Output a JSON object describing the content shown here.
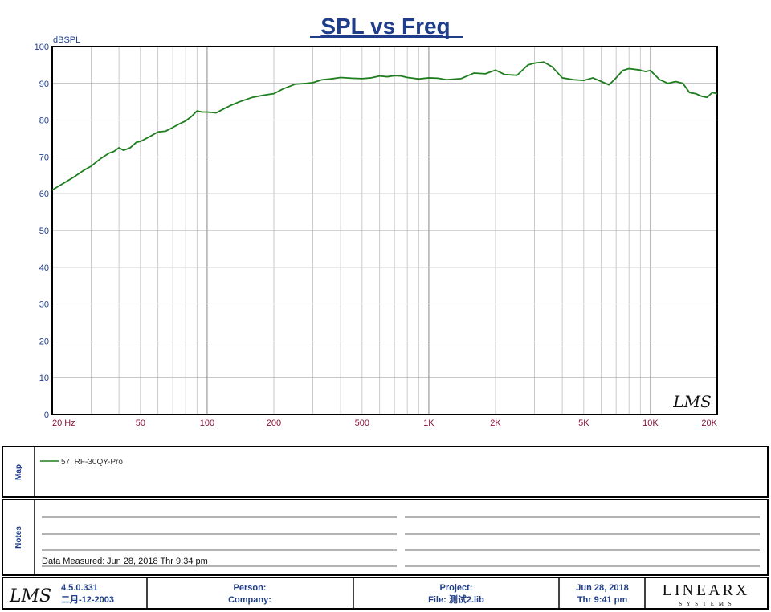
{
  "chart_data": {
    "type": "line",
    "title": "SPL vs Freq",
    "ylabel": "dBSPL",
    "xlabel": "",
    "xscale": "log",
    "xlim": [
      20,
      20000
    ],
    "ylim": [
      0,
      100
    ],
    "yticks": [
      0,
      10,
      20,
      30,
      40,
      50,
      60,
      70,
      80,
      90,
      100
    ],
    "xticks": [
      {
        "value": 20,
        "label": "20  Hz"
      },
      {
        "value": 50,
        "label": "50"
      },
      {
        "value": 100,
        "label": "100"
      },
      {
        "value": 200,
        "label": "200"
      },
      {
        "value": 500,
        "label": "500"
      },
      {
        "value": 1000,
        "label": "1K"
      },
      {
        "value": 2000,
        "label": "2K"
      },
      {
        "value": 5000,
        "label": "5K"
      },
      {
        "value": 10000,
        "label": "10K"
      },
      {
        "value": 20000,
        "label": "20K"
      }
    ],
    "series": [
      {
        "name": "57: RF-30QY-Pro",
        "color": "#1e7d1e",
        "x": [
          20,
          22,
          25,
          28,
          30,
          33,
          36,
          38,
          40,
          42,
          45,
          48,
          50,
          55,
          60,
          65,
          70,
          75,
          80,
          85,
          90,
          95,
          100,
          110,
          120,
          130,
          140,
          160,
          180,
          200,
          220,
          250,
          280,
          300,
          330,
          360,
          400,
          450,
          500,
          550,
          600,
          650,
          700,
          750,
          800,
          850,
          900,
          1000,
          1100,
          1200,
          1400,
          1600,
          1800,
          2000,
          2200,
          2500,
          2800,
          3000,
          3300,
          3600,
          4000,
          4500,
          5000,
          5500,
          6000,
          6500,
          7000,
          7500,
          8000,
          9000,
          9500,
          10000,
          11000,
          12000,
          13000,
          14000,
          15000,
          16000,
          17000,
          18000,
          19000,
          20000
        ],
        "y": [
          61,
          62.5,
          64.5,
          66.5,
          67.5,
          69.5,
          71,
          71.5,
          72.5,
          71.8,
          72.5,
          74,
          74.2,
          75.5,
          76.8,
          77,
          78,
          79,
          79.8,
          81,
          82.5,
          82.2,
          82.2,
          82,
          83.2,
          84.2,
          85,
          86.2,
          86.8,
          87.2,
          88.5,
          89.8,
          90,
          90.2,
          91,
          91.2,
          91.6,
          91.4,
          91.3,
          91.5,
          92,
          91.8,
          92.1,
          92,
          91.6,
          91.4,
          91.2,
          91.5,
          91.4,
          91,
          91.3,
          92.8,
          92.6,
          93.6,
          92.4,
          92.2,
          95,
          95.5,
          95.8,
          94.5,
          91.5,
          91,
          90.8,
          91.5,
          90.5,
          89.6,
          91.5,
          93.5,
          94,
          93.6,
          93.2,
          93.5,
          91,
          90,
          90.5,
          90,
          87.5,
          87.2,
          86.5,
          86.2,
          87.5,
          87.2
        ]
      }
    ]
  },
  "watermark": "LMS",
  "map": {
    "label": "Map",
    "legend_entry": "57: RF-30QY-Pro"
  },
  "notes": {
    "label": "Notes",
    "measured_label": "Data Measured:",
    "measured_value": "Jun 28, 2018  Thr  9:34 pm"
  },
  "footer": {
    "logo": "LMS",
    "version": "4.5.0.331",
    "version_date": "二月-12-2003",
    "person_label": "Person:",
    "company_label": "Company:",
    "project_label": "Project:",
    "file_label": "File: 测试2.lib",
    "date": "Jun 28, 2018",
    "time": "Thr  9:41 pm",
    "brand": "LINEARX",
    "brand_sub": "S  Y  S  T  E  M  S"
  }
}
